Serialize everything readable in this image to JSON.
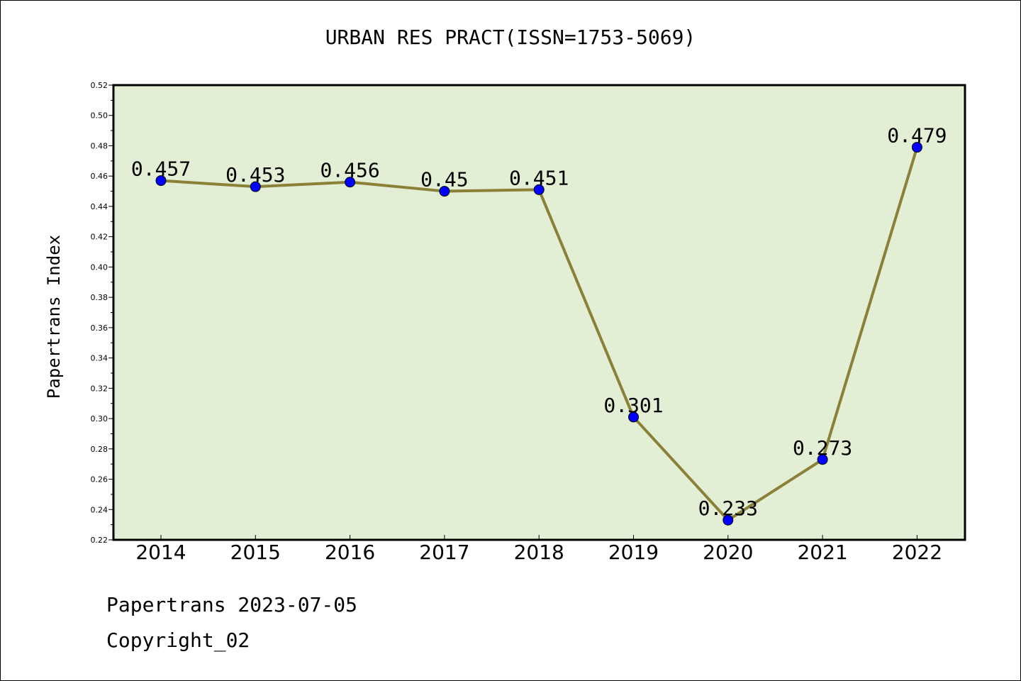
{
  "chart_data": {
    "type": "line",
    "title": "URBAN RES PRACT(ISSN=1753-5069)",
    "xlabel": "",
    "ylabel": "Papertrans Index",
    "categories": [
      "2014",
      "2015",
      "2016",
      "2017",
      "2018",
      "2019",
      "2020",
      "2021",
      "2022"
    ],
    "values": [
      0.457,
      0.453,
      0.456,
      0.45,
      0.451,
      0.301,
      0.233,
      0.273,
      0.479
    ],
    "data_labels": [
      "0.457",
      "0.453",
      "0.456",
      "0.45",
      "0.451",
      "0.301",
      "0.233",
      "0.273",
      "0.479"
    ],
    "ylim": [
      0.22,
      0.52
    ],
    "yticks": [
      "0.22",
      "0.24",
      "0.26",
      "0.28",
      "0.30",
      "0.32",
      "0.34",
      "0.36",
      "0.38",
      "0.40",
      "0.42",
      "0.44",
      "0.46",
      "0.48",
      "0.50",
      "0.52"
    ],
    "grid": false,
    "legend": "none",
    "colors": {
      "plot_background": "#e2efd5",
      "line": "#8b8038",
      "marker": "#0000ff",
      "axes": "#000000"
    }
  },
  "footer": {
    "line1": "Papertrans 2023-07-05",
    "line2": "Copyright_02"
  }
}
